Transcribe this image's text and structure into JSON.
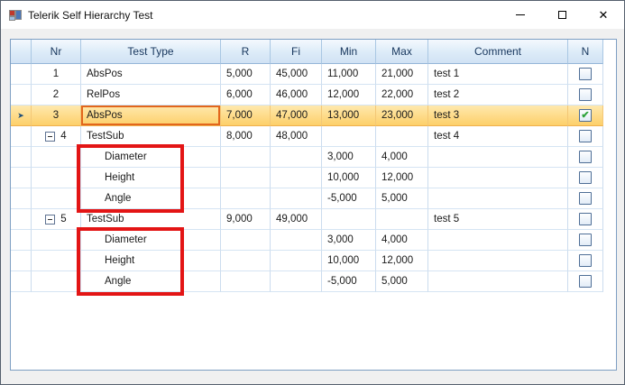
{
  "window": {
    "title": "Telerik Self Hierarchy Test"
  },
  "icons": {
    "close": "✕",
    "check": "✔",
    "current_row_arrow": "➤"
  },
  "grid": {
    "columns": [
      {
        "key": "indicator",
        "label": ""
      },
      {
        "key": "nr",
        "label": "Nr"
      },
      {
        "key": "type",
        "label": "Test Type"
      },
      {
        "key": "r",
        "label": "R"
      },
      {
        "key": "fi",
        "label": "Fi"
      },
      {
        "key": "min",
        "label": "Min"
      },
      {
        "key": "max",
        "label": "Max"
      },
      {
        "key": "comment",
        "label": "Comment"
      },
      {
        "key": "n",
        "label": "N"
      }
    ],
    "rows": [
      {
        "nr": "1",
        "type": "AbsPos",
        "r": "5,000",
        "fi": "45,000",
        "min": "11,000",
        "max": "21,000",
        "comment": "test 1",
        "checked": false,
        "level": 0,
        "expander": false,
        "selected": false,
        "indicator": false,
        "current_cell": false
      },
      {
        "nr": "2",
        "type": "RelPos",
        "r": "6,000",
        "fi": "46,000",
        "min": "12,000",
        "max": "22,000",
        "comment": "test 2",
        "checked": false,
        "level": 0,
        "expander": false,
        "selected": false,
        "indicator": false,
        "current_cell": false
      },
      {
        "nr": "3",
        "type": "AbsPos",
        "r": "7,000",
        "fi": "47,000",
        "min": "13,000",
        "max": "23,000",
        "comment": "test 3",
        "checked": true,
        "level": 0,
        "expander": false,
        "selected": true,
        "indicator": true,
        "current_cell": true
      },
      {
        "nr": "4",
        "type": "TestSub",
        "r": "8,000",
        "fi": "48,000",
        "min": "",
        "max": "",
        "comment": "test 4",
        "checked": false,
        "level": 0,
        "expander": true,
        "selected": false,
        "indicator": false,
        "current_cell": false
      },
      {
        "nr": "",
        "type": "Diameter",
        "r": "",
        "fi": "",
        "min": "3,000",
        "max": "4,000",
        "comment": "",
        "checked": false,
        "level": 1,
        "expander": false,
        "selected": false,
        "indicator": false,
        "current_cell": false
      },
      {
        "nr": "",
        "type": "Height",
        "r": "",
        "fi": "",
        "min": "10,000",
        "max": "12,000",
        "comment": "",
        "checked": false,
        "level": 1,
        "expander": false,
        "selected": false,
        "indicator": false,
        "current_cell": false
      },
      {
        "nr": "",
        "type": "Angle",
        "r": "",
        "fi": "",
        "min": "-5,000",
        "max": "5,000",
        "comment": "",
        "checked": false,
        "level": 1,
        "expander": false,
        "selected": false,
        "indicator": false,
        "current_cell": false
      },
      {
        "nr": "5",
        "type": "TestSub",
        "r": "9,000",
        "fi": "49,000",
        "min": "",
        "max": "",
        "comment": "test 5",
        "checked": false,
        "level": 0,
        "expander": true,
        "selected": false,
        "indicator": false,
        "current_cell": false
      },
      {
        "nr": "",
        "type": "Diameter",
        "r": "",
        "fi": "",
        "min": "3,000",
        "max": "4,000",
        "comment": "",
        "checked": false,
        "level": 1,
        "expander": false,
        "selected": false,
        "indicator": false,
        "current_cell": false
      },
      {
        "nr": "",
        "type": "Height",
        "r": "",
        "fi": "",
        "min": "10,000",
        "max": "12,000",
        "comment": "",
        "checked": false,
        "level": 1,
        "expander": false,
        "selected": false,
        "indicator": false,
        "current_cell": false
      },
      {
        "nr": "",
        "type": "Angle",
        "r": "",
        "fi": "",
        "min": "-5,000",
        "max": "5,000",
        "comment": "",
        "checked": false,
        "level": 1,
        "expander": false,
        "selected": false,
        "indicator": false,
        "current_cell": false
      }
    ]
  },
  "colors": {
    "selected_row_top": "#FEE9AE",
    "selected_row_bottom": "#FDCE66",
    "current_cell_border": "#E2661C",
    "annotation_box": "#E31515",
    "header_gradient_top": "#F4F9FE",
    "header_gradient_bottom": "#D1E2F4",
    "header_text": "#17365D",
    "grid_border": "#7E9FC3",
    "grid_line": "#D5E4F3",
    "checkmark_green": "#2FA33B"
  }
}
